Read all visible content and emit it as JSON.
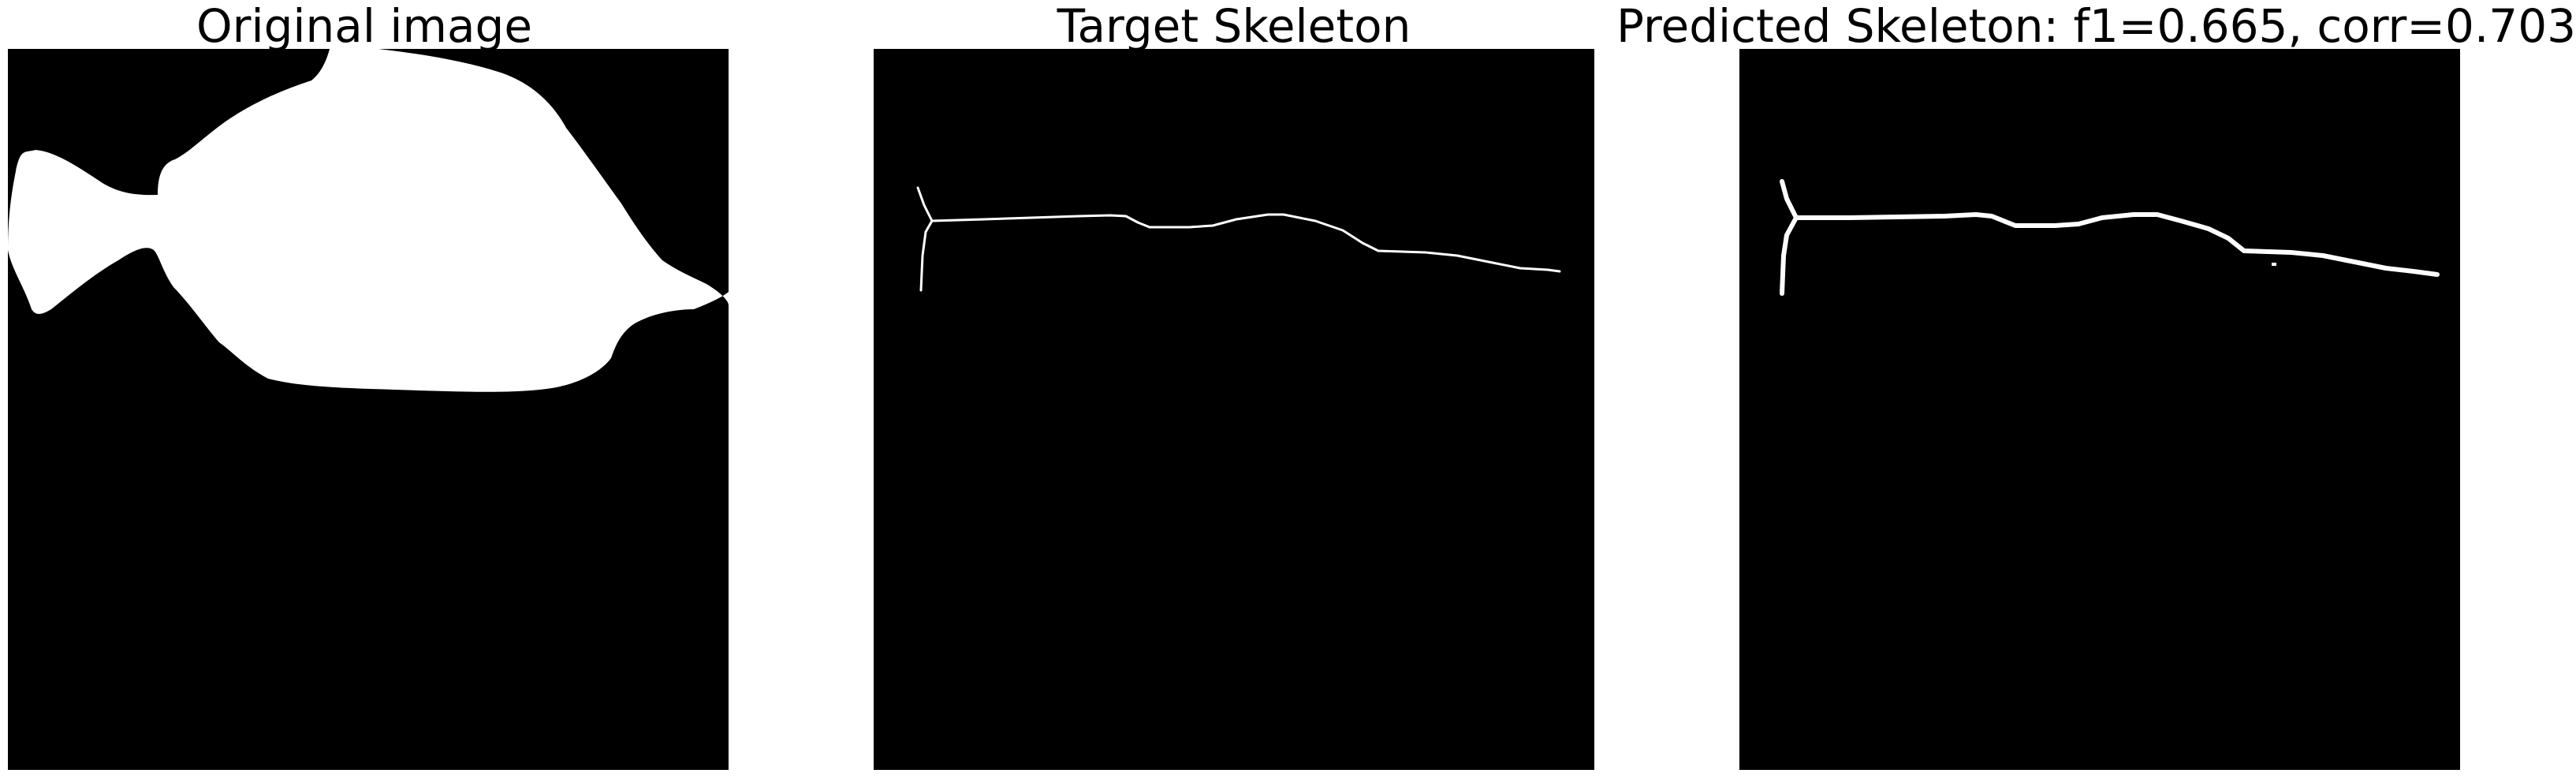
{
  "panels": [
    {
      "title": "Original image"
    },
    {
      "title": "Target Skeleton"
    },
    {
      "title": "Predicted Skeleton: f1=0.665, corr=0.703"
    }
  ],
  "colors": {
    "background": "#000000",
    "foreground": "#ffffff",
    "page": "#ffffff"
  }
}
